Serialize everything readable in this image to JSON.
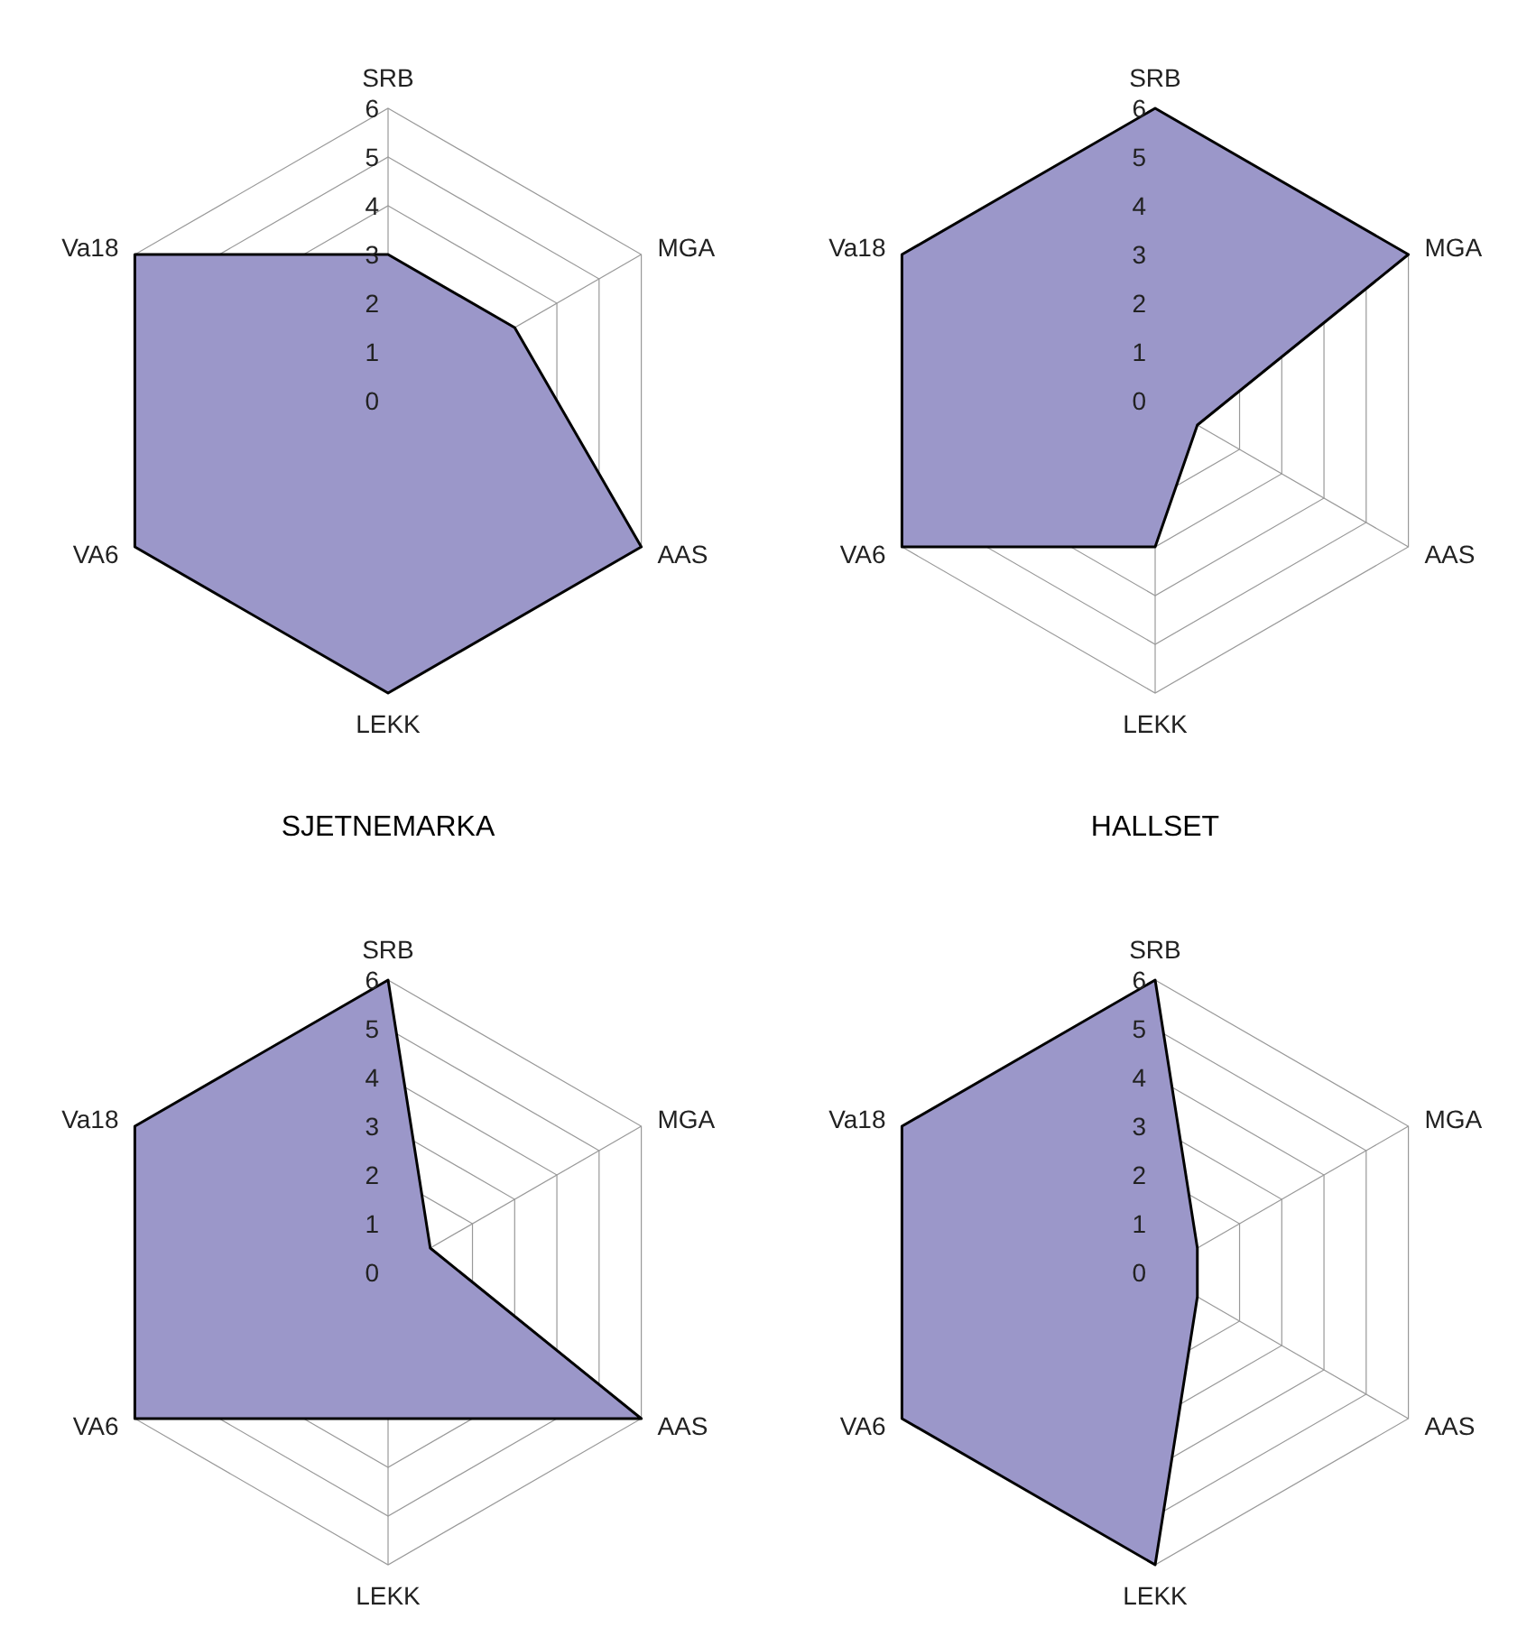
{
  "chart_data": [
    {
      "type": "radar",
      "categories": [
        "SRB",
        "MGA",
        "AAS",
        "LEKK",
        "VA6",
        "Va18"
      ],
      "ylim": [
        0,
        6
      ],
      "yticks": [
        0,
        1,
        2,
        3,
        4,
        5,
        6
      ],
      "grid": true,
      "series": [
        {
          "color": "#9b97c9",
          "values": [
            3,
            3,
            6,
            6,
            6,
            6
          ]
        }
      ]
    },
    {
      "type": "radar",
      "categories": [
        "SRB",
        "MGA",
        "AAS",
        "LEKK",
        "VA6",
        "Va18"
      ],
      "ylim": [
        0,
        6
      ],
      "yticks": [
        0,
        1,
        2,
        3,
        4,
        5,
        6
      ],
      "grid": true,
      "series": [
        {
          "color": "#9b97c9",
          "values": [
            6,
            6,
            1,
            3,
            6,
            6
          ]
        }
      ]
    },
    {
      "type": "radar",
      "title": "SJETNEMARKA",
      "categories": [
        "SRB",
        "MGA",
        "AAS",
        "LEKK",
        "VA6",
        "Va18"
      ],
      "ylim": [
        0,
        6
      ],
      "yticks": [
        0,
        1,
        2,
        3,
        4,
        5,
        6
      ],
      "grid": true,
      "series": [
        {
          "color": "#9b97c9",
          "values": [
            6,
            1,
            6,
            3,
            6,
            6
          ]
        }
      ]
    },
    {
      "type": "radar",
      "title": "HALLSET",
      "categories": [
        "SRB",
        "MGA",
        "AAS",
        "LEKK",
        "VA6",
        "Va18"
      ],
      "ylim": [
        0,
        6
      ],
      "yticks": [
        0,
        1,
        2,
        3,
        4,
        5,
        6
      ],
      "grid": true,
      "series": [
        {
          "color": "#9b97c9",
          "values": [
            6,
            1,
            1,
            6,
            6,
            6
          ]
        }
      ]
    }
  ]
}
